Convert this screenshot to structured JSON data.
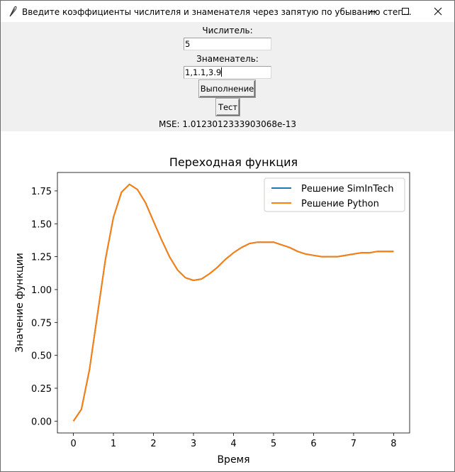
{
  "window": {
    "title": "Введите коэффициенты числителя и знаменателя через запятую по убыванию степ...",
    "icon": "feather-icon"
  },
  "form": {
    "numerator_label": "Числитель:",
    "numerator_value": "5",
    "denominator_label": "Знаменатель:",
    "denominator_value": "1,1.1,3.9",
    "run_button": "Выполнение",
    "test_button": "Тест",
    "mse_text": "MSE: 1.0123012333903068e-13"
  },
  "chart_data": {
    "type": "line",
    "title": "Переходная функция",
    "xlabel": "Время",
    "ylabel": "Значение функции",
    "xlim": [
      -0.4,
      8.4
    ],
    "ylim": [
      -0.09,
      1.89
    ],
    "xticks": [
      "0",
      "1",
      "2",
      "3",
      "4",
      "5",
      "6",
      "7",
      "8"
    ],
    "yticks": [
      "0.00",
      "0.25",
      "0.50",
      "0.75",
      "1.00",
      "1.25",
      "1.50",
      "1.75"
    ],
    "legend_position": "top-right",
    "series": [
      {
        "name": "Решение SimInTech",
        "color": "#1f77b4",
        "x": [
          0,
          0.2,
          0.4,
          0.6,
          0.8,
          1.0,
          1.2,
          1.4,
          1.6,
          1.8,
          2.0,
          2.2,
          2.4,
          2.6,
          2.8,
          3.0,
          3.2,
          3.4,
          3.6,
          3.8,
          4.0,
          4.2,
          4.4,
          4.6,
          4.8,
          5.0,
          5.2,
          5.4,
          5.6,
          5.8,
          6.0,
          6.2,
          6.4,
          6.6,
          6.8,
          7.0,
          7.2,
          7.4,
          7.6,
          7.8,
          8.0
        ],
        "y": [
          0,
          0.09,
          0.39,
          0.81,
          1.23,
          1.55,
          1.74,
          1.8,
          1.76,
          1.66,
          1.52,
          1.38,
          1.25,
          1.15,
          1.09,
          1.07,
          1.08,
          1.12,
          1.17,
          1.23,
          1.28,
          1.32,
          1.35,
          1.36,
          1.36,
          1.36,
          1.34,
          1.32,
          1.29,
          1.27,
          1.26,
          1.25,
          1.25,
          1.25,
          1.26,
          1.27,
          1.28,
          1.28,
          1.29,
          1.29,
          1.29
        ]
      },
      {
        "name": "Решение Python",
        "color": "#ff7f0e",
        "x": [
          0,
          0.2,
          0.4,
          0.6,
          0.8,
          1.0,
          1.2,
          1.4,
          1.6,
          1.8,
          2.0,
          2.2,
          2.4,
          2.6,
          2.8,
          3.0,
          3.2,
          3.4,
          3.6,
          3.8,
          4.0,
          4.2,
          4.4,
          4.6,
          4.8,
          5.0,
          5.2,
          5.4,
          5.6,
          5.8,
          6.0,
          6.2,
          6.4,
          6.6,
          6.8,
          7.0,
          7.2,
          7.4,
          7.6,
          7.8,
          8.0
        ],
        "y": [
          0,
          0.09,
          0.39,
          0.81,
          1.23,
          1.55,
          1.74,
          1.8,
          1.76,
          1.66,
          1.52,
          1.38,
          1.25,
          1.15,
          1.09,
          1.07,
          1.08,
          1.12,
          1.17,
          1.23,
          1.28,
          1.32,
          1.35,
          1.36,
          1.36,
          1.36,
          1.34,
          1.32,
          1.29,
          1.27,
          1.26,
          1.25,
          1.25,
          1.25,
          1.26,
          1.27,
          1.28,
          1.28,
          1.29,
          1.29,
          1.29
        ]
      }
    ]
  }
}
